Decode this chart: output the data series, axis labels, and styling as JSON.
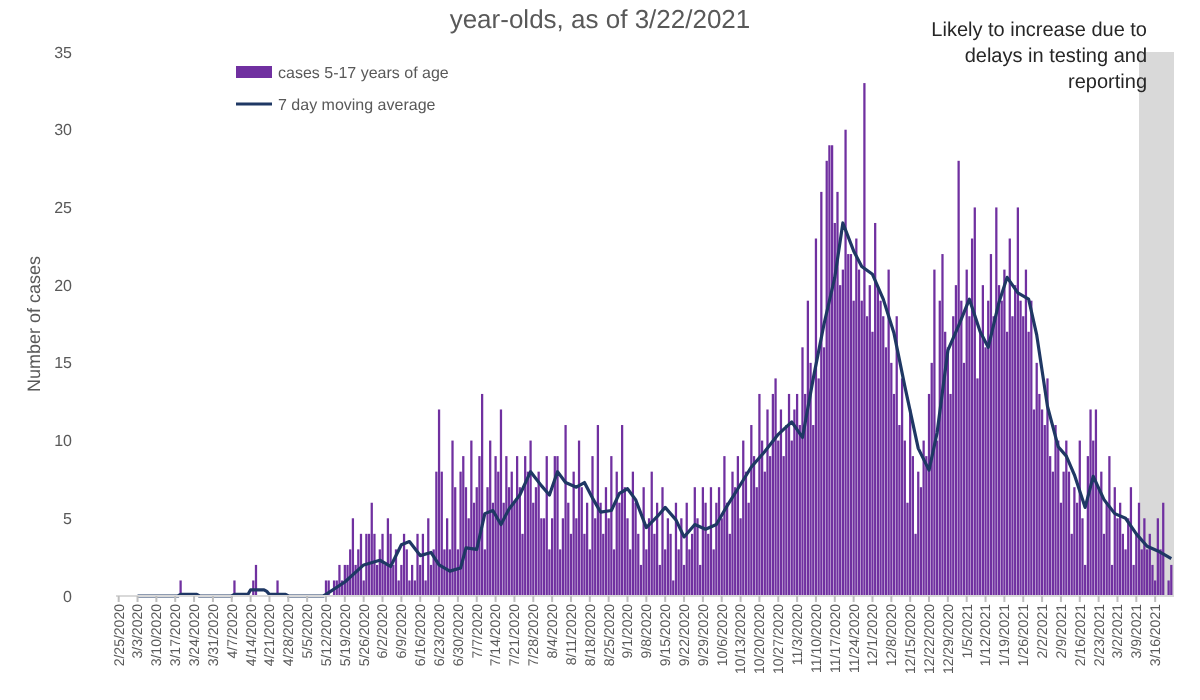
{
  "chart_data": {
    "type": "bar",
    "title": "year-olds, as of 3/22/2021",
    "ylabel": "Number of cases",
    "legend": "top left",
    "xlim": [
      "2020-02-24",
      "2021-03-23"
    ],
    "ylim": [
      0,
      35
    ],
    "yticks": [
      0,
      5,
      10,
      15,
      20,
      25,
      30,
      35
    ],
    "xticks": [
      {
        "value": "2020-02-25",
        "label": "2/25/2020"
      },
      {
        "value": "2020-03-03",
        "label": "3/3/2020"
      },
      {
        "value": "2020-03-10",
        "label": "3/10/2020"
      },
      {
        "value": "2020-03-17",
        "label": "3/17/2020"
      },
      {
        "value": "2020-03-24",
        "label": "3/24/2020"
      },
      {
        "value": "2020-03-31",
        "label": "3/31/2020"
      },
      {
        "value": "2020-04-07",
        "label": "4/7/2020"
      },
      {
        "value": "2020-04-14",
        "label": "4/14/2020"
      },
      {
        "value": "2020-04-21",
        "label": "4/21/2020"
      },
      {
        "value": "2020-04-28",
        "label": "4/28/2020"
      },
      {
        "value": "2020-05-05",
        "label": "5/5/2020"
      },
      {
        "value": "2020-05-12",
        "label": "5/12/2020"
      },
      {
        "value": "2020-05-19",
        "label": "5/19/2020"
      },
      {
        "value": "2020-05-26",
        "label": "5/26/2020"
      },
      {
        "value": "2020-06-02",
        "label": "6/2/2020"
      },
      {
        "value": "2020-06-09",
        "label": "6/9/2020"
      },
      {
        "value": "2020-06-16",
        "label": "6/16/2020"
      },
      {
        "value": "2020-06-23",
        "label": "6/23/2020"
      },
      {
        "value": "2020-06-30",
        "label": "6/30/2020"
      },
      {
        "value": "2020-07-07",
        "label": "7/7/2020"
      },
      {
        "value": "2020-07-14",
        "label": "7/14/2020"
      },
      {
        "value": "2020-07-21",
        "label": "7/21/2020"
      },
      {
        "value": "2020-07-28",
        "label": "7/28/2020"
      },
      {
        "value": "2020-08-04",
        "label": "8/4/2020"
      },
      {
        "value": "2020-08-11",
        "label": "8/11/2020"
      },
      {
        "value": "2020-08-18",
        "label": "8/18/2020"
      },
      {
        "value": "2020-08-25",
        "label": "8/25/2020"
      },
      {
        "value": "2020-09-01",
        "label": "9/1/2020"
      },
      {
        "value": "2020-09-08",
        "label": "9/8/2020"
      },
      {
        "value": "2020-09-15",
        "label": "9/15/2020"
      },
      {
        "value": "2020-09-22",
        "label": "9/22/2020"
      },
      {
        "value": "2020-09-29",
        "label": "9/29/2020"
      },
      {
        "value": "2020-10-06",
        "label": "10/6/2020"
      },
      {
        "value": "2020-10-13",
        "label": "10/13/2020"
      },
      {
        "value": "2020-10-20",
        "label": "10/20/2020"
      },
      {
        "value": "2020-10-27",
        "label": "10/27/2020"
      },
      {
        "value": "2020-11-03",
        "label": "11/3/2020"
      },
      {
        "value": "2020-11-10",
        "label": "11/10/2020"
      },
      {
        "value": "2020-11-17",
        "label": "11/17/2020"
      },
      {
        "value": "2020-11-24",
        "label": "11/24/2020"
      },
      {
        "value": "2020-12-01",
        "label": "12/1/2020"
      },
      {
        "value": "2020-12-08",
        "label": "12/8/2020"
      },
      {
        "value": "2020-12-15",
        "label": "12/15/2020"
      },
      {
        "value": "2020-12-22",
        "label": "12/22/2020"
      },
      {
        "value": "2020-12-29",
        "label": "12/29/2020"
      },
      {
        "value": "2021-01-05",
        "label": "1/5/2021"
      },
      {
        "value": "2021-01-12",
        "label": "1/12/2021"
      },
      {
        "value": "2021-01-19",
        "label": "1/19/2021"
      },
      {
        "value": "2021-01-26",
        "label": "1/26/2021"
      },
      {
        "value": "2021-02-02",
        "label": "2/2/2021"
      },
      {
        "value": "2021-02-09",
        "label": "2/9/2021"
      },
      {
        "value": "2021-02-16",
        "label": "2/16/2021"
      },
      {
        "value": "2021-02-23",
        "label": "2/23/2021"
      },
      {
        "value": "2021-03-02",
        "label": "3/2/2021"
      },
      {
        "value": "2021-03-09",
        "label": "3/9/2021"
      },
      {
        "value": "2021-03-16",
        "label": "3/16/2021"
      }
    ],
    "bands": [
      {
        "axis": "x",
        "from": "2021-03-10",
        "to": "2021-03-23",
        "label": "Likely to increase due to delays in testing and reporting",
        "color": "#d9d9d9"
      }
    ],
    "x": [
      "2020-02-25",
      "2020-02-26",
      "2020-02-27",
      "2020-02-28",
      "2020-02-29",
      "2020-03-01",
      "2020-03-02",
      "2020-03-03",
      "2020-03-04",
      "2020-03-05",
      "2020-03-06",
      "2020-03-07",
      "2020-03-08",
      "2020-03-09",
      "2020-03-10",
      "2020-03-11",
      "2020-03-12",
      "2020-03-13",
      "2020-03-14",
      "2020-03-15",
      "2020-03-16",
      "2020-03-17",
      "2020-03-18",
      "2020-03-19",
      "2020-03-20",
      "2020-03-21",
      "2020-03-22",
      "2020-03-23",
      "2020-03-24",
      "2020-03-25",
      "2020-03-26",
      "2020-03-27",
      "2020-03-28",
      "2020-03-29",
      "2020-03-30",
      "2020-03-31",
      "2020-04-01",
      "2020-04-02",
      "2020-04-03",
      "2020-04-04",
      "2020-04-05",
      "2020-04-06",
      "2020-04-07",
      "2020-04-08",
      "2020-04-09",
      "2020-04-10",
      "2020-04-11",
      "2020-04-12",
      "2020-04-13",
      "2020-04-14",
      "2020-04-15",
      "2020-04-16",
      "2020-04-17",
      "2020-04-18",
      "2020-04-19",
      "2020-04-20",
      "2020-04-21",
      "2020-04-22",
      "2020-04-23",
      "2020-04-24",
      "2020-04-25",
      "2020-04-26",
      "2020-04-27",
      "2020-04-28",
      "2020-04-29",
      "2020-04-30",
      "2020-05-01",
      "2020-05-02",
      "2020-05-03",
      "2020-05-04",
      "2020-05-05",
      "2020-05-06",
      "2020-05-07",
      "2020-05-08",
      "2020-05-09",
      "2020-05-10",
      "2020-05-11",
      "2020-05-12",
      "2020-05-13",
      "2020-05-14",
      "2020-05-15",
      "2020-05-16",
      "2020-05-17",
      "2020-05-18",
      "2020-05-19",
      "2020-05-20",
      "2020-05-21",
      "2020-05-22",
      "2020-05-23",
      "2020-05-24",
      "2020-05-25",
      "2020-05-26",
      "2020-05-27",
      "2020-05-28",
      "2020-05-29",
      "2020-05-30",
      "2020-05-31",
      "2020-06-01",
      "2020-06-02",
      "2020-06-03",
      "2020-06-04",
      "2020-06-05",
      "2020-06-06",
      "2020-06-07",
      "2020-06-08",
      "2020-06-09",
      "2020-06-10",
      "2020-06-11",
      "2020-06-12",
      "2020-06-13",
      "2020-06-14",
      "2020-06-15",
      "2020-06-16",
      "2020-06-17",
      "2020-06-18",
      "2020-06-19",
      "2020-06-20",
      "2020-06-21",
      "2020-06-22",
      "2020-06-23",
      "2020-06-24",
      "2020-06-25",
      "2020-06-26",
      "2020-06-27",
      "2020-06-28",
      "2020-06-29",
      "2020-06-30",
      "2020-07-01",
      "2020-07-02",
      "2020-07-03",
      "2020-07-04",
      "2020-07-05",
      "2020-07-06",
      "2020-07-07",
      "2020-07-08",
      "2020-07-09",
      "2020-07-10",
      "2020-07-11",
      "2020-07-12",
      "2020-07-13",
      "2020-07-14",
      "2020-07-15",
      "2020-07-16",
      "2020-07-17",
      "2020-07-18",
      "2020-07-19",
      "2020-07-20",
      "2020-07-21",
      "2020-07-22",
      "2020-07-23",
      "2020-07-24",
      "2020-07-25",
      "2020-07-26",
      "2020-07-27",
      "2020-07-28",
      "2020-07-29",
      "2020-07-30",
      "2020-07-31",
      "2020-08-01",
      "2020-08-02",
      "2020-08-03",
      "2020-08-04",
      "2020-08-05",
      "2020-08-06",
      "2020-08-07",
      "2020-08-08",
      "2020-08-09",
      "2020-08-10",
      "2020-08-11",
      "2020-08-12",
      "2020-08-13",
      "2020-08-14",
      "2020-08-15",
      "2020-08-16",
      "2020-08-17",
      "2020-08-18",
      "2020-08-19",
      "2020-08-20",
      "2020-08-21",
      "2020-08-22",
      "2020-08-23",
      "2020-08-24",
      "2020-08-25",
      "2020-08-26",
      "2020-08-27",
      "2020-08-28",
      "2020-08-29",
      "2020-08-30",
      "2020-08-31",
      "2020-09-01",
      "2020-09-02",
      "2020-09-03",
      "2020-09-04",
      "2020-09-05",
      "2020-09-06",
      "2020-09-07",
      "2020-09-08",
      "2020-09-09",
      "2020-09-10",
      "2020-09-11",
      "2020-09-12",
      "2020-09-13",
      "2020-09-14",
      "2020-09-15",
      "2020-09-16",
      "2020-09-17",
      "2020-09-18",
      "2020-09-19",
      "2020-09-20",
      "2020-09-21",
      "2020-09-22",
      "2020-09-23",
      "2020-09-24",
      "2020-09-25",
      "2020-09-26",
      "2020-09-27",
      "2020-09-28",
      "2020-09-29",
      "2020-09-30",
      "2020-10-01",
      "2020-10-02",
      "2020-10-03",
      "2020-10-04",
      "2020-10-05",
      "2020-10-06",
      "2020-10-07",
      "2020-10-08",
      "2020-10-09",
      "2020-10-10",
      "2020-10-11",
      "2020-10-12",
      "2020-10-13",
      "2020-10-14",
      "2020-10-15",
      "2020-10-16",
      "2020-10-17",
      "2020-10-18",
      "2020-10-19",
      "2020-10-20",
      "2020-10-21",
      "2020-10-22",
      "2020-10-23",
      "2020-10-24",
      "2020-10-25",
      "2020-10-26",
      "2020-10-27",
      "2020-10-28",
      "2020-10-29",
      "2020-10-30",
      "2020-10-31",
      "2020-11-01",
      "2020-11-02",
      "2020-11-03",
      "2020-11-04",
      "2020-11-05",
      "2020-11-06",
      "2020-11-07",
      "2020-11-08",
      "2020-11-09",
      "2020-11-10",
      "2020-11-11",
      "2020-11-12",
      "2020-11-13",
      "2020-11-14",
      "2020-11-15",
      "2020-11-16",
      "2020-11-17",
      "2020-11-18",
      "2020-11-19",
      "2020-11-20",
      "2020-11-21",
      "2020-11-22",
      "2020-11-23",
      "2020-11-24",
      "2020-11-25",
      "2020-11-26",
      "2020-11-27",
      "2020-11-28",
      "2020-11-29",
      "2020-11-30",
      "2020-12-01",
      "2020-12-02",
      "2020-12-03",
      "2020-12-04",
      "2020-12-05",
      "2020-12-06",
      "2020-12-07",
      "2020-12-08",
      "2020-12-09",
      "2020-12-10",
      "2020-12-11",
      "2020-12-12",
      "2020-12-13",
      "2020-12-14",
      "2020-12-15",
      "2020-12-16",
      "2020-12-17",
      "2020-12-18",
      "2020-12-19",
      "2020-12-20",
      "2020-12-21",
      "2020-12-22",
      "2020-12-23",
      "2020-12-24",
      "2020-12-25",
      "2020-12-26",
      "2020-12-27",
      "2020-12-28",
      "2020-12-29",
      "2020-12-30",
      "2020-12-31",
      "2021-01-01",
      "2021-01-02",
      "2021-01-03",
      "2021-01-04",
      "2021-01-05",
      "2021-01-06",
      "2021-01-07",
      "2021-01-08",
      "2021-01-09",
      "2021-01-10",
      "2021-01-11",
      "2021-01-12",
      "2021-01-13",
      "2021-01-14",
      "2021-01-15",
      "2021-01-16",
      "2021-01-17",
      "2021-01-18",
      "2021-01-19",
      "2021-01-20",
      "2021-01-21",
      "2021-01-22",
      "2021-01-23",
      "2021-01-24",
      "2021-01-25",
      "2021-01-26",
      "2021-01-27",
      "2021-01-28",
      "2021-01-29",
      "2021-01-30",
      "2021-01-31",
      "2021-02-01",
      "2021-02-02",
      "2021-02-03",
      "2021-02-04",
      "2021-02-05",
      "2021-02-06",
      "2021-02-07",
      "2021-02-08",
      "2021-02-09",
      "2021-02-10",
      "2021-02-11",
      "2021-02-12",
      "2021-02-13",
      "2021-02-14",
      "2021-02-15",
      "2021-02-16",
      "2021-02-17",
      "2021-02-18",
      "2021-02-19",
      "2021-02-20",
      "2021-02-21",
      "2021-02-22",
      "2021-02-23",
      "2021-02-24",
      "2021-02-25",
      "2021-02-26",
      "2021-02-27",
      "2021-02-28",
      "2021-03-01",
      "2021-03-02",
      "2021-03-03",
      "2021-03-04",
      "2021-03-05",
      "2021-03-06",
      "2021-03-07",
      "2021-03-08",
      "2021-03-09",
      "2021-03-10",
      "2021-03-11",
      "2021-03-12",
      "2021-03-13",
      "2021-03-14",
      "2021-03-15",
      "2021-03-16",
      "2021-03-17",
      "2021-03-18",
      "2021-03-19",
      "2021-03-20",
      "2021-03-21",
      "2021-03-22"
    ],
    "series": [
      {
        "name": "cases 5-17 years of age",
        "color": "#7030a0",
        "values": [
          0,
          0,
          0,
          0,
          0,
          0,
          0,
          0,
          0,
          0,
          0,
          0,
          0,
          0,
          0,
          0,
          0,
          0,
          0,
          0,
          0,
          0,
          0,
          1,
          0,
          0,
          0,
          0,
          0,
          0,
          0,
          0,
          0,
          0,
          0,
          0,
          0,
          0,
          0,
          0,
          0,
          0,
          0,
          1,
          0,
          0,
          0,
          0,
          0,
          0,
          1,
          2,
          0,
          0,
          0,
          0,
          0,
          0,
          0,
          1,
          0,
          0,
          0,
          0,
          0,
          0,
          0,
          0,
          0,
          0,
          0,
          0,
          0,
          0,
          0,
          0,
          0,
          1,
          1,
          0,
          1,
          1,
          2,
          1,
          2,
          2,
          3,
          5,
          2,
          3,
          4,
          1,
          4,
          4,
          6,
          4,
          2,
          3,
          4,
          2,
          5,
          4,
          2,
          3,
          1,
          2,
          4,
          3,
          1,
          2,
          1,
          4,
          2,
          4,
          1,
          5,
          2,
          3,
          8,
          12,
          8,
          3,
          5,
          3,
          10,
          7,
          3,
          8,
          9,
          7,
          5,
          10,
          6,
          7,
          9,
          13,
          3,
          7,
          10,
          6,
          9,
          8,
          12,
          6,
          9,
          7,
          8,
          6,
          9,
          7,
          4,
          9,
          8,
          10,
          6,
          7,
          8,
          5,
          5,
          9,
          3,
          5,
          9,
          9,
          3,
          5,
          11,
          6,
          4,
          8,
          5,
          10,
          7,
          4,
          6,
          3,
          9,
          5,
          11,
          6,
          4,
          7,
          5,
          9,
          3,
          8,
          6,
          11,
          7,
          5,
          3,
          8,
          6,
          4,
          2,
          7,
          3,
          5,
          8,
          4,
          6,
          2,
          7,
          3,
          5,
          4,
          1,
          6,
          3,
          5,
          2,
          6,
          3,
          4,
          7,
          5,
          2,
          7,
          6,
          4,
          7,
          3,
          6,
          7,
          5,
          9,
          6,
          4,
          8,
          7,
          9,
          5,
          10,
          8,
          6,
          11,
          9,
          7,
          13,
          10,
          8,
          12,
          9,
          13,
          14,
          10,
          12,
          9,
          11,
          13,
          10,
          12,
          13,
          11,
          16,
          13,
          19,
          15,
          11,
          23,
          14,
          26,
          16,
          28,
          29,
          29,
          24,
          26,
          20,
          21,
          30,
          22,
          22,
          19,
          23,
          21,
          19,
          33,
          18,
          20,
          17,
          24,
          20,
          19,
          18,
          16,
          21,
          15,
          13,
          18,
          11,
          14,
          10,
          6,
          12,
          9,
          4,
          8,
          7,
          10,
          9,
          13,
          15,
          21,
          10,
          19,
          22,
          17,
          16,
          13,
          18,
          20,
          28,
          19,
          15,
          21,
          18,
          23,
          25,
          14,
          17,
          20,
          16,
          19,
          22,
          18,
          25,
          20,
          19,
          21,
          17,
          23,
          18,
          20,
          25,
          19,
          18,
          21,
          17,
          19,
          12,
          15,
          13,
          12,
          11,
          14,
          9,
          8,
          11,
          10,
          6,
          8,
          10,
          8,
          4,
          7,
          6,
          10,
          5,
          2,
          9,
          12,
          10,
          12,
          7,
          8,
          4,
          6,
          9,
          2,
          7,
          5,
          6,
          4,
          3,
          5,
          7,
          2,
          4,
          6,
          3,
          5,
          3,
          4,
          2,
          1,
          5,
          3,
          6,
          0,
          1,
          2
        ]
      },
      {
        "name": "7 day moving average",
        "type": "line",
        "color": "#1f3864",
        "x": [
          "2020-03-03",
          "2020-03-18",
          "2020-03-19",
          "2020-03-25",
          "2020-03-26",
          "2020-04-07",
          "2020-04-08",
          "2020-04-13",
          "2020-04-14",
          "2020-04-19",
          "2020-04-20",
          "2020-04-21",
          "2020-04-27",
          "2020-04-28",
          "2020-05-11",
          "2020-05-12",
          "2020-05-19",
          "2020-05-26",
          "2020-06-01",
          "2020-06-05",
          "2020-06-09",
          "2020-06-12",
          "2020-06-16",
          "2020-06-20",
          "2020-06-23",
          "2020-06-27",
          "2020-07-01",
          "2020-07-03",
          "2020-07-07",
          "2020-07-10",
          "2020-07-13",
          "2020-07-16",
          "2020-07-19",
          "2020-07-23",
          "2020-07-27",
          "2020-07-31",
          "2020-08-03",
          "2020-08-06",
          "2020-08-09",
          "2020-08-13",
          "2020-08-16",
          "2020-08-19",
          "2020-08-22",
          "2020-08-26",
          "2020-08-29",
          "2020-09-01",
          "2020-09-04",
          "2020-09-08",
          "2020-09-12",
          "2020-09-15",
          "2020-09-19",
          "2020-09-22",
          "2020-09-26",
          "2020-09-30",
          "2020-10-04",
          "2020-10-08",
          "2020-10-12",
          "2020-10-17",
          "2020-10-22",
          "2020-10-27",
          "2020-11-01",
          "2020-11-05",
          "2020-11-09",
          "2020-11-13",
          "2020-11-17",
          "2020-11-20",
          "2020-11-24",
          "2020-11-27",
          "2020-12-01",
          "2020-12-05",
          "2020-12-09",
          "2020-12-13",
          "2020-12-18",
          "2020-12-22",
          "2020-12-25",
          "2020-12-29",
          "2021-01-02",
          "2021-01-06",
          "2021-01-10",
          "2021-01-13",
          "2021-01-17",
          "2021-01-20",
          "2021-01-24",
          "2021-01-28",
          "2021-01-31",
          "2021-02-04",
          "2021-02-08",
          "2021-02-11",
          "2021-02-14",
          "2021-02-18",
          "2021-02-21",
          "2021-02-25",
          "2021-03-01",
          "2021-03-05",
          "2021-03-09",
          "2021-03-13",
          "2021-03-17",
          "2021-03-22"
        ],
        "values": [
          0,
          0,
          0.1,
          0.1,
          0,
          0,
          0.1,
          0.1,
          0.4,
          0.4,
          0.3,
          0.1,
          0.1,
          0,
          0,
          0.1,
          0.9,
          2.0,
          2.3,
          1.9,
          3.3,
          3.5,
          2.6,
          2.8,
          2.0,
          1.6,
          1.8,
          3.1,
          3.0,
          5.3,
          5.5,
          4.6,
          5.6,
          6.5,
          8.0,
          7.1,
          6.5,
          8.0,
          7.3,
          7.0,
          7.3,
          6.3,
          5.4,
          5.5,
          6.6,
          6.9,
          6.2,
          4.4,
          5.1,
          5.7,
          4.9,
          3.8,
          4.6,
          4.3,
          4.6,
          5.8,
          6.9,
          8.3,
          9.3,
          10.4,
          11.2,
          10.2,
          14,
          17.5,
          20.5,
          24.0,
          22.2,
          21.2,
          20.7,
          19.1,
          16.9,
          13.5,
          9.5,
          8.1,
          10.5,
          15.8,
          17.4,
          19.1,
          17.0,
          16.0,
          18.9,
          20.5,
          19.5,
          19.1,
          16.8,
          12.2,
          9.6,
          9.0,
          7.8,
          5.7,
          7.7,
          6.2,
          5.3,
          5.0,
          4.0,
          3.2,
          2.9,
          2.4
        ]
      }
    ]
  }
}
